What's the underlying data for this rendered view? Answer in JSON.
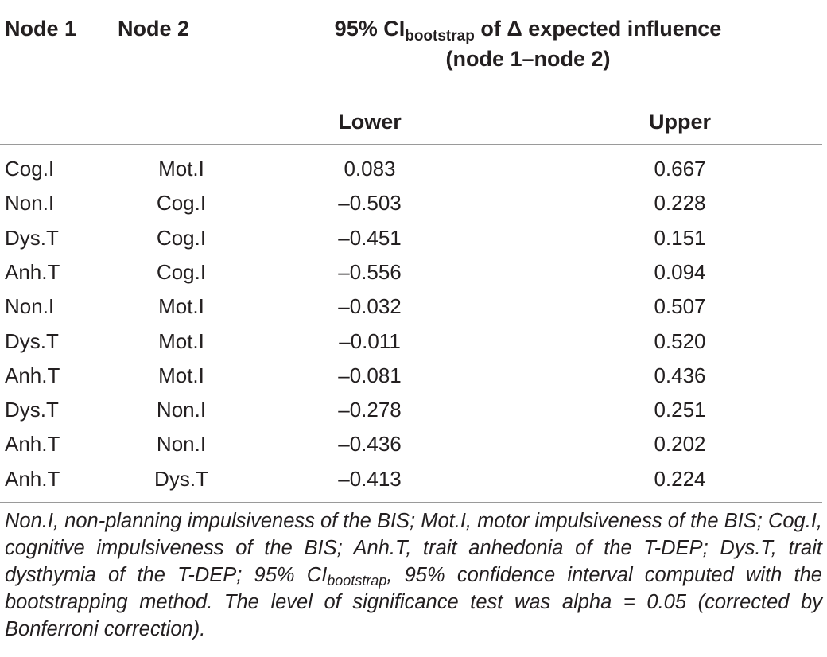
{
  "header": {
    "node1": "Node 1",
    "node2": "Node 2",
    "ci_prefix": "95% CI",
    "ci_sub": "bootstrap",
    "ci_suffix": " of Δ expected influence",
    "ci_line2": "(node 1–node 2)",
    "lower": "Lower",
    "upper": "Upper"
  },
  "rows": [
    {
      "n1": "Cog.I",
      "n2": "Mot.I",
      "lower": "0.083",
      "upper": "0.667"
    },
    {
      "n1": "Non.I",
      "n2": "Cog.I",
      "lower": "–0.503",
      "upper": "0.228"
    },
    {
      "n1": "Dys.T",
      "n2": "Cog.I",
      "lower": "–0.451",
      "upper": "0.151"
    },
    {
      "n1": "Anh.T",
      "n2": "Cog.I",
      "lower": "–0.556",
      "upper": "0.094"
    },
    {
      "n1": "Non.I",
      "n2": "Mot.I",
      "lower": "–0.032",
      "upper": "0.507"
    },
    {
      "n1": "Dys.T",
      "n2": "Mot.I",
      "lower": "–0.011",
      "upper": "0.520"
    },
    {
      "n1": "Anh.T",
      "n2": "Mot.I",
      "lower": "–0.081",
      "upper": "0.436"
    },
    {
      "n1": "Dys.T",
      "n2": "Non.I",
      "lower": "–0.278",
      "upper": "0.251"
    },
    {
      "n1": "Anh.T",
      "n2": "Non.I",
      "lower": "–0.436",
      "upper": "0.202"
    },
    {
      "n1": "Anh.T",
      "n2": "Dys.T",
      "lower": "–0.413",
      "upper": "0.224"
    }
  ],
  "footnote": {
    "part1": "Non.I, non-planning impulsiveness of the BIS; Mot.I, motor impulsiveness of the BIS; Cog.I, cognitive impulsiveness of the BIS; Anh.T, trait anhedonia of the T-DEP; Dys.T, trait dysthymia of the T-DEP; 95% CI",
    "sub": "bootstrap",
    "part2": ", 95% confidence interval computed with the bootstrapping method. The level of significance test was alpha = 0.05 (corrected by Bonferroni correction)."
  }
}
